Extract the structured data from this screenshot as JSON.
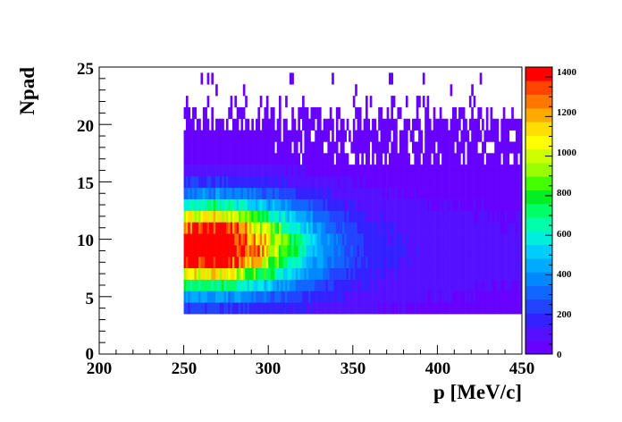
{
  "chart_data": {
    "type": "heatmap",
    "title": "",
    "xlabel": "p [MeV/c]",
    "ylabel": "Npad",
    "xlim": [
      200,
      450
    ],
    "ylim": [
      0,
      25
    ],
    "x_ticks": [
      "200",
      "250",
      "300",
      "350",
      "400",
      "450"
    ],
    "y_ticks": [
      "0",
      "5",
      "10",
      "15",
      "20",
      "25"
    ],
    "colorbar": {
      "range": [
        0,
        1450
      ],
      "ticks": [
        "0",
        "200",
        "400",
        "600",
        "800",
        "1000",
        "1200",
        "1400"
      ],
      "colors": [
        "#6600ff",
        "#5511ff",
        "#3322ff",
        "#2244ff",
        "#1166ff",
        "#0088ff",
        "#00aaff",
        "#00ccff",
        "#00eedd",
        "#00ffaa",
        "#00ff66",
        "#00ee22",
        "#44ff00",
        "#99ff00",
        "#ccff00",
        "#ffff00",
        "#ffdd00",
        "#ffaa00",
        "#ff7700",
        "#ff4400",
        "#ff0000"
      ]
    },
    "grid": false,
    "x_bin_width": 1.25,
    "npad_range": [
      4,
      24
    ],
    "momentum_range": [
      250,
      450
    ],
    "peak": {
      "x": 262,
      "y": 9.5,
      "value": 1450
    }
  }
}
